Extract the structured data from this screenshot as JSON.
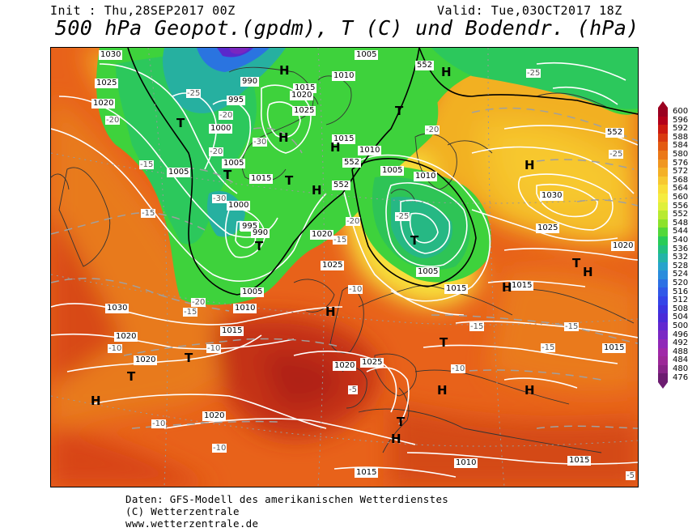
{
  "header": {
    "init": "Init : Thu,28SEP2017 00Z",
    "valid": "Valid: Tue,03OCT2017 18Z",
    "title": "500 hPa Geopot.(gpdm), T (C) und Bodendr. (hPa)"
  },
  "isobar_labels": [
    "1030",
    "1025",
    "1020",
    "1005",
    "990",
    "995",
    "1000",
    "1015",
    "1020",
    "1025",
    "1010",
    "1005",
    "1015",
    "1010",
    "1005",
    "1000",
    "995",
    "1005",
    "1010",
    "1015",
    "1020",
    "1030",
    "1025",
    "1020",
    "1015",
    "1010",
    "1005",
    "1025",
    "1030",
    "1020",
    "1015",
    "1020",
    "1025",
    "1020",
    "1010",
    "1015",
    "1015",
    "1020",
    "1015",
    "1005",
    "1015",
    "995",
    "990"
  ],
  "temp_labels": [
    "-20",
    "-15",
    "-25",
    "-30",
    "-20",
    "-15",
    "-25",
    "-20",
    "-15",
    "-10",
    "-10",
    "-20",
    "-15",
    "-10",
    "-5",
    "-10",
    "-15",
    "-25",
    "-20",
    "-10",
    "-15",
    "-5",
    "-25",
    "-20",
    "-30",
    "-15",
    "-10"
  ],
  "pressure_centers": [
    "H",
    "T",
    "H",
    "T",
    "H",
    "T",
    "H",
    "T",
    "H",
    "T",
    "H",
    "T",
    "H",
    "T",
    "H",
    "H",
    "T",
    "T",
    "H",
    "T",
    "H",
    "T",
    "H",
    "H"
  ],
  "height_contour_labels": [
    "552",
    "552",
    "552",
    "552"
  ],
  "legend": {
    "values": [
      "600",
      "596",
      "592",
      "588",
      "584",
      "580",
      "576",
      "572",
      "568",
      "564",
      "560",
      "556",
      "552",
      "548",
      "544",
      "540",
      "536",
      "532",
      "528",
      "524",
      "520",
      "516",
      "512",
      "508",
      "504",
      "500",
      "496",
      "492",
      "488",
      "484",
      "480",
      "476"
    ],
    "colors": [
      "#9b0020",
      "#b3001a",
      "#cc1a10",
      "#d93a10",
      "#e35a12",
      "#eb7818",
      "#f09620",
      "#f4b026",
      "#f7c830",
      "#f9de38",
      "#f5ec40",
      "#dff03a",
      "#b8ea30",
      "#8ce22c",
      "#52d83a",
      "#28cc58",
      "#22c080",
      "#24b4a8",
      "#28a4cc",
      "#2a8cdc",
      "#2c70e4",
      "#3058e8",
      "#3444e8",
      "#3c34e0",
      "#4a2ad8",
      "#6228d0",
      "#7a28c4",
      "#9028b8",
      "#a028a8",
      "#9c2898",
      "#882488",
      "#6c1c70"
    ]
  },
  "credits": {
    "line1": "Daten: GFS-Modell des amerikanischen Wetterdienstes",
    "line2": "(C) Wetterzentrale",
    "line3": "www.wetterzentrale.de"
  }
}
